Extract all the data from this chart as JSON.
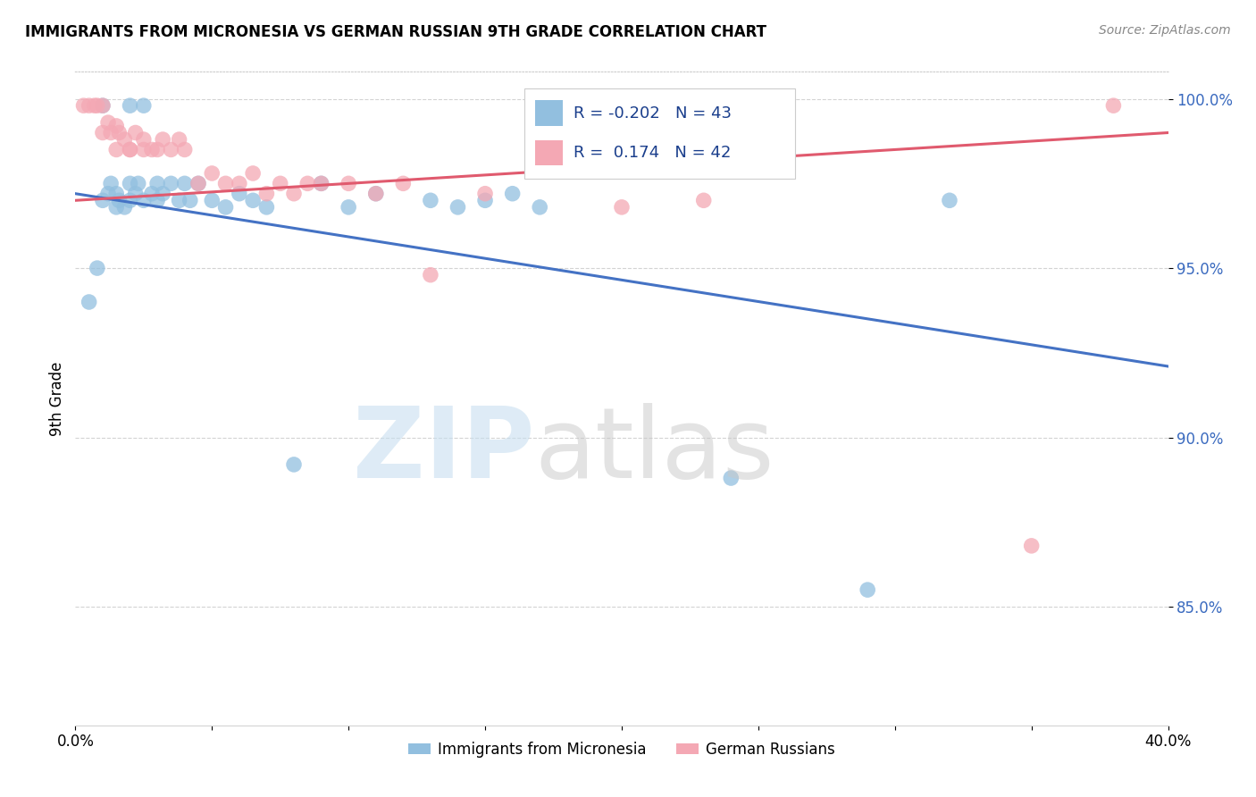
{
  "title": "IMMIGRANTS FROM MICRONESIA VS GERMAN RUSSIAN 9TH GRADE CORRELATION CHART",
  "source": "Source: ZipAtlas.com",
  "ylabel": "9th Grade",
  "yticks": [
    0.85,
    0.9,
    0.95,
    1.0
  ],
  "ytick_labels": [
    "85.0%",
    "90.0%",
    "95.0%",
    "100.0%"
  ],
  "xmin": 0.0,
  "xmax": 0.4,
  "ymin": 0.815,
  "ymax": 1.008,
  "blue_color": "#92bfdf",
  "pink_color": "#f4a8b4",
  "blue_line_color": "#4472c4",
  "pink_line_color": "#e05a6e",
  "legend_R_blue": "-0.202",
  "legend_N_blue": "43",
  "legend_R_pink": " 0.174",
  "legend_N_pink": "42",
  "blue_line_x0": 0.0,
  "blue_line_y0": 0.972,
  "blue_line_x1": 0.4,
  "blue_line_y1": 0.921,
  "pink_line_x0": 0.0,
  "pink_line_y0": 0.97,
  "pink_line_x1": 0.4,
  "pink_line_y1": 0.99,
  "blue_scatter_x": [
    0.005,
    0.008,
    0.01,
    0.01,
    0.012,
    0.013,
    0.015,
    0.015,
    0.016,
    0.018,
    0.02,
    0.02,
    0.02,
    0.022,
    0.023,
    0.025,
    0.025,
    0.028,
    0.03,
    0.03,
    0.032,
    0.035,
    0.038,
    0.04,
    0.042,
    0.045,
    0.05,
    0.055,
    0.06,
    0.065,
    0.07,
    0.08,
    0.09,
    0.1,
    0.11,
    0.13,
    0.14,
    0.15,
    0.16,
    0.17,
    0.24,
    0.29,
    0.32
  ],
  "blue_scatter_y": [
    0.94,
    0.95,
    0.998,
    0.97,
    0.972,
    0.975,
    0.968,
    0.972,
    0.97,
    0.968,
    0.998,
    0.975,
    0.97,
    0.972,
    0.975,
    0.998,
    0.97,
    0.972,
    0.975,
    0.97,
    0.972,
    0.975,
    0.97,
    0.975,
    0.97,
    0.975,
    0.97,
    0.968,
    0.972,
    0.97,
    0.968,
    0.892,
    0.975,
    0.968,
    0.972,
    0.97,
    0.968,
    0.97,
    0.972,
    0.968,
    0.888,
    0.855,
    0.97
  ],
  "pink_scatter_x": [
    0.003,
    0.005,
    0.007,
    0.008,
    0.01,
    0.01,
    0.012,
    0.013,
    0.015,
    0.015,
    0.016,
    0.018,
    0.02,
    0.02,
    0.022,
    0.025,
    0.025,
    0.028,
    0.03,
    0.032,
    0.035,
    0.038,
    0.04,
    0.045,
    0.05,
    0.055,
    0.06,
    0.065,
    0.07,
    0.075,
    0.08,
    0.085,
    0.09,
    0.1,
    0.11,
    0.12,
    0.13,
    0.15,
    0.2,
    0.23,
    0.35,
    0.38
  ],
  "pink_scatter_y": [
    0.998,
    0.998,
    0.998,
    0.998,
    0.998,
    0.99,
    0.993,
    0.99,
    0.985,
    0.992,
    0.99,
    0.988,
    0.985,
    0.985,
    0.99,
    0.985,
    0.988,
    0.985,
    0.985,
    0.988,
    0.985,
    0.988,
    0.985,
    0.975,
    0.978,
    0.975,
    0.975,
    0.978,
    0.972,
    0.975,
    0.972,
    0.975,
    0.975,
    0.975,
    0.972,
    0.975,
    0.948,
    0.972,
    0.968,
    0.97,
    0.868,
    0.998
  ]
}
